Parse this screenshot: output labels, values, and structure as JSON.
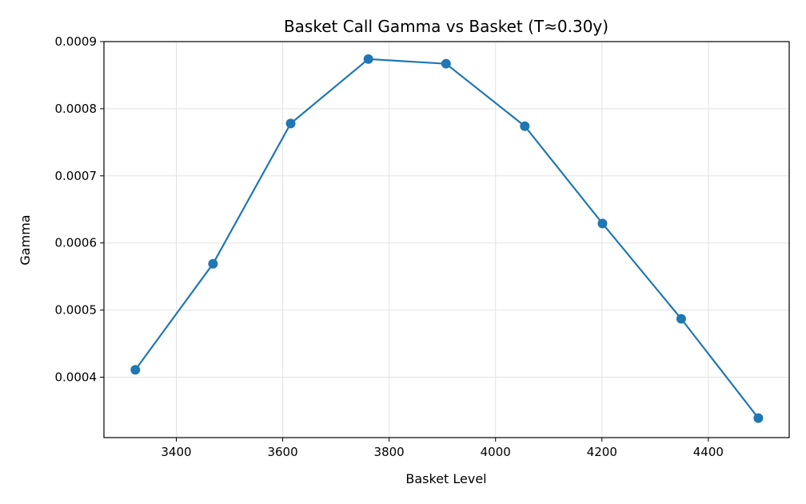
{
  "chart_data": {
    "type": "line",
    "title": "Basket Call Gamma vs Basket (T≈0.30y)",
    "xlabel": "Basket Level",
    "ylabel": "Gamma",
    "xlim": [
      3264,
      4552
    ],
    "ylim": [
      0.00031,
      0.0009
    ],
    "xticks": [
      3400,
      3600,
      3800,
      4000,
      4200,
      4400
    ],
    "yticks": [
      0.0004,
      0.0005,
      0.0006,
      0.0007,
      0.0008,
      0.0009
    ],
    "xtick_labels": [
      "3400",
      "3600",
      "3800",
      "4000",
      "4200",
      "4400"
    ],
    "ytick_labels": [
      "0.0004",
      "0.0005",
      "0.0006",
      "0.0007",
      "0.0008",
      "0.0009"
    ],
    "grid": true,
    "series": [
      {
        "color": "#1f77b4",
        "marker": "circle",
        "x": [
          3323,
          3469,
          3615,
          3761,
          3907,
          4055,
          4201,
          4349,
          4494
        ],
        "y": [
          0.000411,
          0.000569,
          0.000778,
          0.000874,
          0.000867,
          0.000774,
          0.000629,
          0.000487,
          0.000339
        ]
      }
    ]
  }
}
